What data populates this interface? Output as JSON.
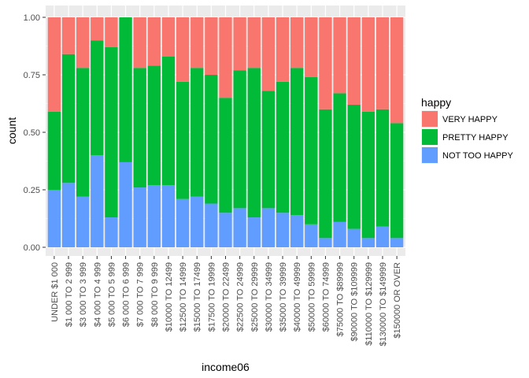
{
  "chart_data": {
    "type": "bar",
    "stacked": true,
    "xlabel": "income06",
    "ylabel": "count",
    "ylim": [
      0,
      1
    ],
    "yticks": [
      "0.00",
      "0.25",
      "0.50",
      "0.75",
      "1.00"
    ],
    "categories": [
      "UNDER $1 000",
      "$1 000 TO 2 999",
      "$3 000 TO 3 999",
      "$4 000 TO 4 999",
      "$5 000 TO 5 999",
      "$6 000 TO 6 999",
      "$7 000 TO 7 999",
      "$8 000 TO 9 999",
      "$10000 TO 12499",
      "$12500 TO 14999",
      "$15000 TO 17499",
      "$17500 TO 19999",
      "$20000 TO 22499",
      "$22500 TO 24999",
      "$25000 TO 29999",
      "$30000 TO 34999",
      "$35000 TO 39999",
      "$40000 TO 49999",
      "$50000 TO 59999",
      "$60000 TO 74999",
      "$75000 TO $89999",
      "$90000 TO $109999",
      "$110000 TO $129999",
      "$130000 TO $149999",
      "$150000 OR OVER"
    ],
    "series": [
      {
        "name": "NOT TOO HAPPY",
        "color": "#619CFF",
        "values": [
          0.25,
          0.28,
          0.22,
          0.4,
          0.13,
          0.37,
          0.26,
          0.27,
          0.27,
          0.21,
          0.22,
          0.19,
          0.15,
          0.17,
          0.13,
          0.17,
          0.15,
          0.14,
          0.1,
          0.04,
          0.11,
          0.08,
          0.04,
          0.09,
          0.04
        ]
      },
      {
        "name": "PRETTY HAPPY",
        "color": "#00BA38",
        "values": [
          0.34,
          0.56,
          0.56,
          0.5,
          0.74,
          0.63,
          0.52,
          0.52,
          0.56,
          0.51,
          0.56,
          0.56,
          0.5,
          0.6,
          0.65,
          0.51,
          0.57,
          0.64,
          0.64,
          0.56,
          0.56,
          0.54,
          0.55,
          0.51,
          0.5
        ]
      },
      {
        "name": "VERY HAPPY",
        "color": "#F8766D",
        "values": [
          0.41,
          0.16,
          0.22,
          0.1,
          0.13,
          0.0,
          0.22,
          0.21,
          0.17,
          0.28,
          0.22,
          0.25,
          0.35,
          0.23,
          0.22,
          0.32,
          0.28,
          0.22,
          0.26,
          0.4,
          0.33,
          0.38,
          0.41,
          0.4,
          0.46
        ]
      }
    ],
    "legend": {
      "title": "happy",
      "position": "right",
      "order": [
        "VERY HAPPY",
        "PRETTY HAPPY",
        "NOT TOO HAPPY"
      ]
    },
    "panel_background": "#EBEBEB",
    "grid_color": "#FFFFFF",
    "grid": true
  }
}
